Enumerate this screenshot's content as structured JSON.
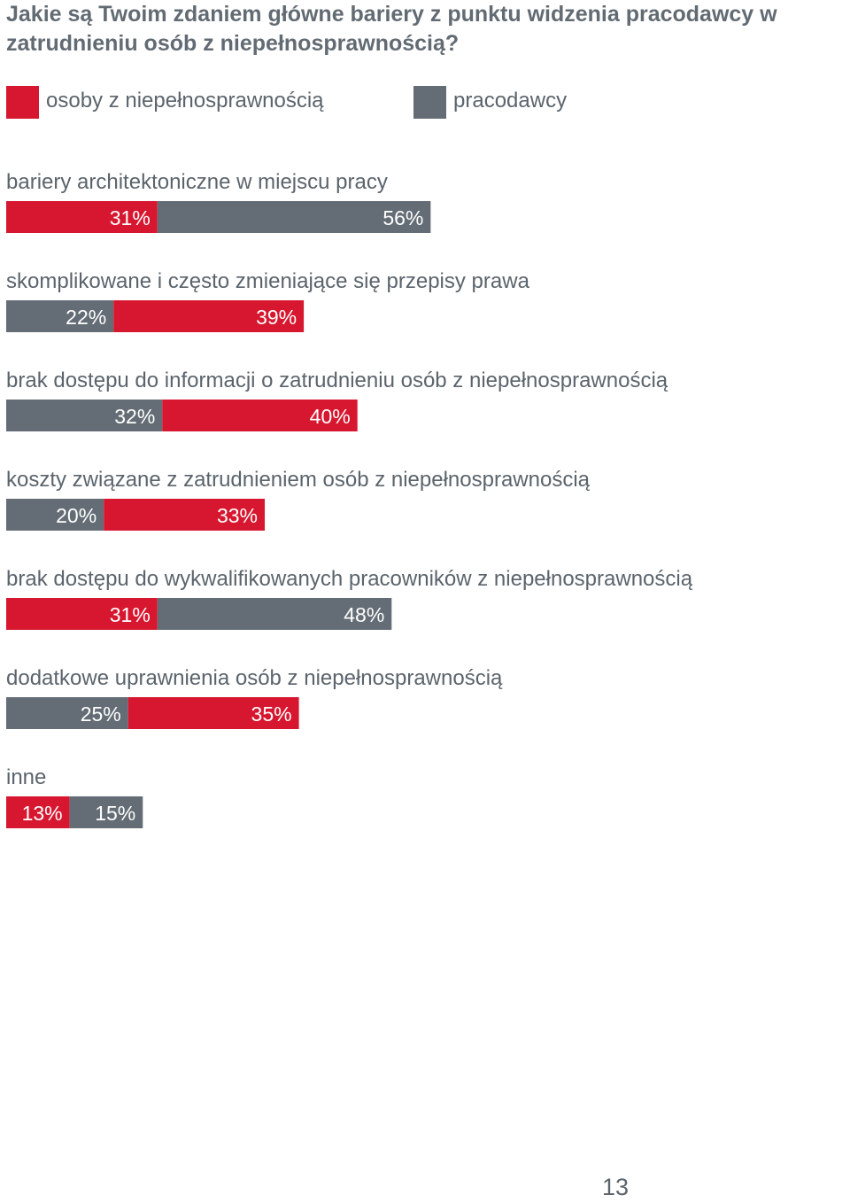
{
  "title": "Jakie są Twoim zdaniem główne bariery z punktu widzenia pracodawcy w zatrudnieniu osób z niepełnosprawnością?",
  "legend": [
    {
      "name": "osoby z niepełnosprawnością",
      "color": "#d7172f"
    },
    {
      "name": "pracodawcy",
      "color": "#646d75"
    }
  ],
  "page_number": "13",
  "chart_data": {
    "type": "bar",
    "orientation": "horizontal",
    "stacked": true,
    "unit": "%",
    "series": [
      {
        "name": "osoby z niepełnosprawnością",
        "color": "#d7172f"
      },
      {
        "name": "pracodawcy",
        "color": "#646d75"
      }
    ],
    "categories": [
      {
        "label": "bariery architektoniczne w miejscu pracy",
        "segments": [
          {
            "series": "osoby z niepełnosprawnością",
            "value": 31
          },
          {
            "series": "pracodawcy",
            "value": 56
          }
        ]
      },
      {
        "label": "skomplikowane i często zmieniające się przepisy prawa",
        "segments": [
          {
            "series": "pracodawcy",
            "value": 22
          },
          {
            "series": "osoby z niepełnosprawnością",
            "value": 39
          }
        ]
      },
      {
        "label": "brak dostępu do informacji o zatrudnieniu osób z niepełnosprawnością",
        "segments": [
          {
            "series": "pracodawcy",
            "value": 32
          },
          {
            "series": "osoby z niepełnosprawnością",
            "value": 40
          }
        ]
      },
      {
        "label": "koszty związane z zatrudnieniem osób z niepełnosprawnością",
        "segments": [
          {
            "series": "pracodawcy",
            "value": 20
          },
          {
            "series": "osoby z niepełnosprawnością",
            "value": 33
          }
        ]
      },
      {
        "label": "brak dostępu do wykwalifikowanych pracowników z niepełnosprawnością",
        "segments": [
          {
            "series": "osoby z niepełnosprawnością",
            "value": 31
          },
          {
            "series": "pracodawcy",
            "value": 48
          }
        ]
      },
      {
        "label": "dodatkowe uprawnienia osób z niepełnosprawnością",
        "segments": [
          {
            "series": "pracodawcy",
            "value": 25
          },
          {
            "series": "osoby z niepełnosprawnością",
            "value": 35
          }
        ]
      },
      {
        "label": "inne",
        "segments": [
          {
            "series": "osoby z niepełnosprawnością",
            "value": 13
          },
          {
            "series": "pracodawcy",
            "value": 15
          }
        ]
      }
    ]
  }
}
